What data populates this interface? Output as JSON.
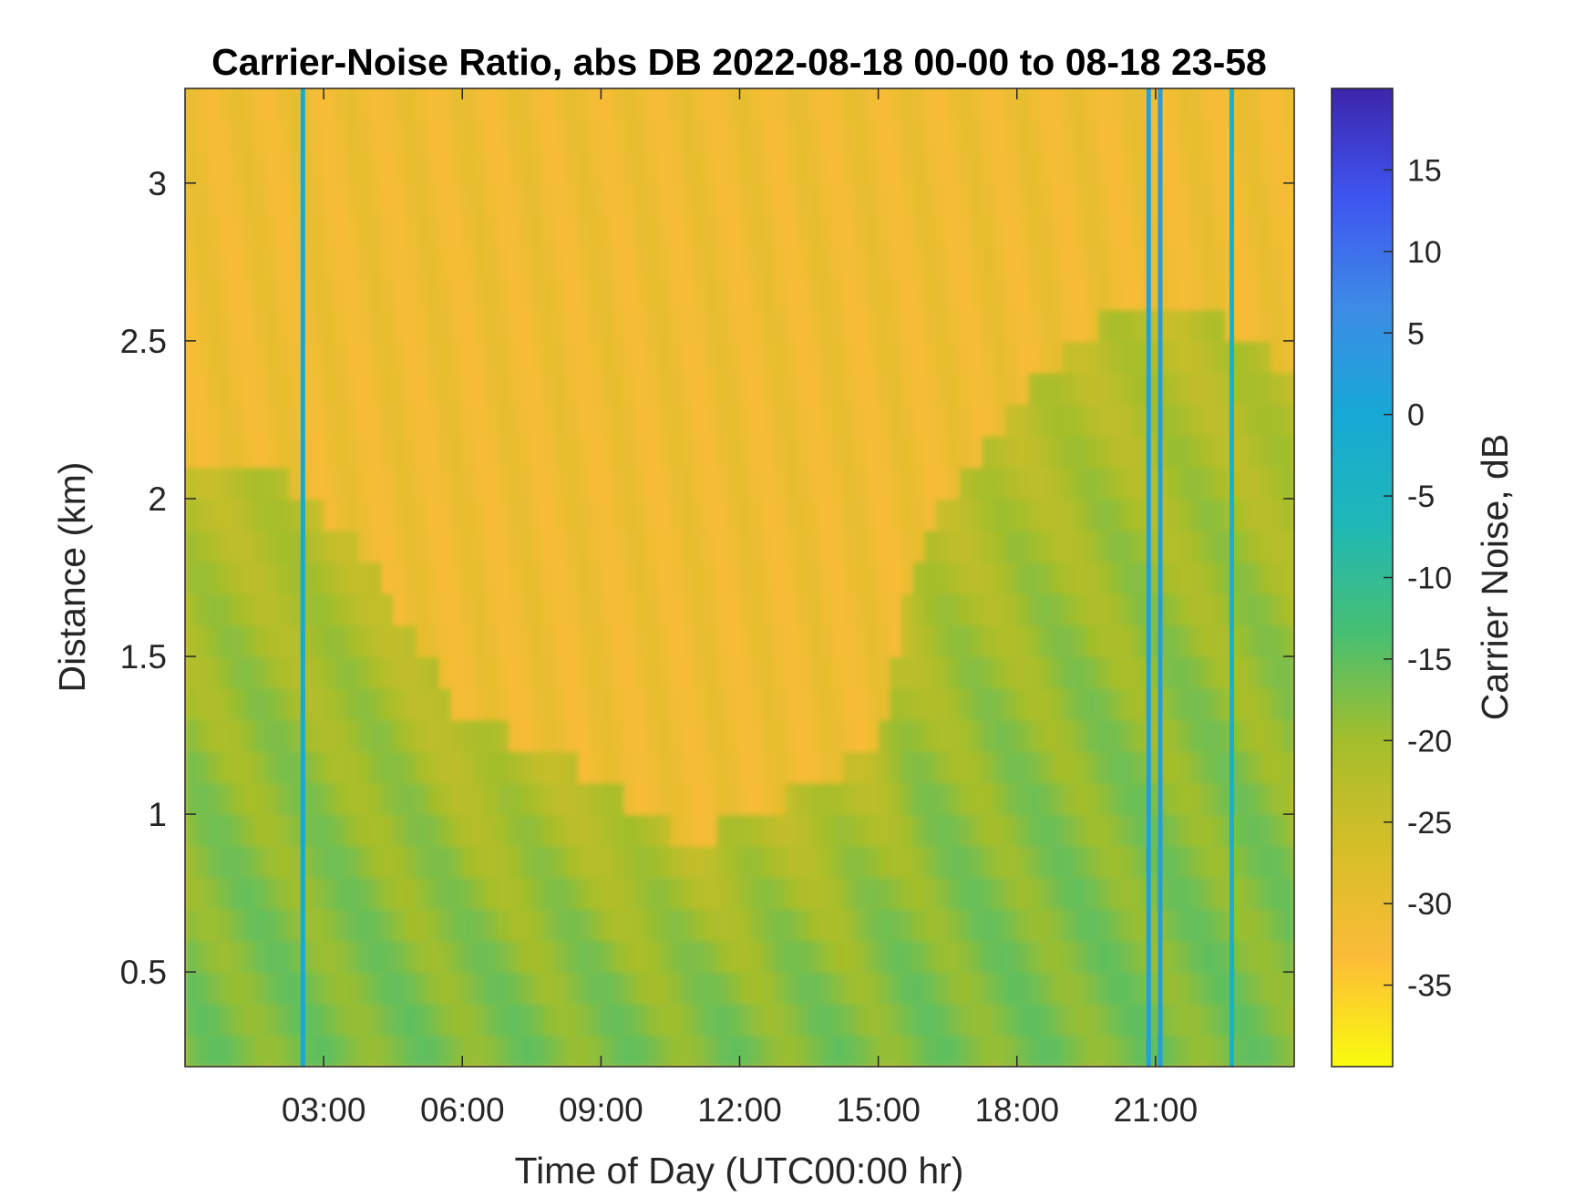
{
  "chart_data": {
    "type": "heatmap",
    "title": "Carrier-Noise Ratio, abs DB 2022-08-18 00-00 to 08-18 23-58",
    "xlabel": "Time of Day (UTC00:00 hr)",
    "ylabel": "Distance (km)",
    "colorbar_label": "Carrier Noise, dB",
    "xlim_hours": [
      0,
      24
    ],
    "ylim_km": [
      0.2,
      3.3
    ],
    "clim_db": [
      -40,
      20
    ],
    "x_ticks": [
      {
        "value": 3,
        "label": "03:00"
      },
      {
        "value": 6,
        "label": "06:00"
      },
      {
        "value": 9,
        "label": "09:00"
      },
      {
        "value": 12,
        "label": "12:00"
      },
      {
        "value": 15,
        "label": "15:00"
      },
      {
        "value": 18,
        "label": "18:00"
      },
      {
        "value": 21,
        "label": "21:00"
      }
    ],
    "y_ticks": [
      {
        "value": 0.5,
        "label": "0.5"
      },
      {
        "value": 1,
        "label": "1"
      },
      {
        "value": 1.5,
        "label": "1.5"
      },
      {
        "value": 2,
        "label": "2"
      },
      {
        "value": 2.5,
        "label": "2.5"
      },
      {
        "value": 3,
        "label": "3"
      }
    ],
    "colorbar_ticks": [
      {
        "value": 15,
        "label": "15"
      },
      {
        "value": 10,
        "label": "10"
      },
      {
        "value": 5,
        "label": "5"
      },
      {
        "value": 0,
        "label": "0"
      },
      {
        "value": -5,
        "label": "-5"
      },
      {
        "value": -10,
        "label": "-10"
      },
      {
        "value": -15,
        "label": "-15"
      },
      {
        "value": -20,
        "label": "-20"
      },
      {
        "value": -25,
        "label": "-25"
      },
      {
        "value": -30,
        "label": "-30"
      },
      {
        "value": -35,
        "label": "-35"
      }
    ],
    "colormap": "parula",
    "colormap_stops": [
      "#f9fb0e",
      "#fcbc38",
      "#d6be28",
      "#a3be2b",
      "#46bf72",
      "#1fb8b7",
      "#17a9d6",
      "#3d8be6",
      "#3e55f1",
      "#3d26aa"
    ],
    "background_db": -31,
    "boundary_layer_top_km": {
      "hours": [
        0,
        2,
        4,
        6,
        8,
        10,
        11,
        12,
        13,
        14,
        15,
        16,
        17,
        18,
        20,
        22,
        24
      ],
      "km": [
        2.1,
        2.1,
        1.8,
        1.3,
        1.2,
        1.0,
        0.9,
        1.0,
        1.05,
        1.1,
        1.25,
        1.9,
        2.1,
        2.3,
        2.6,
        2.6,
        2.4
      ]
    },
    "boundary_layer_core_db": -17,
    "vertical_stripes": [
      {
        "hour": 2.55,
        "db": 0
      },
      {
        "hour": 20.85,
        "db": 2
      },
      {
        "hour": 21.1,
        "db": 3
      },
      {
        "hour": 22.65,
        "db": -3
      }
    ]
  }
}
